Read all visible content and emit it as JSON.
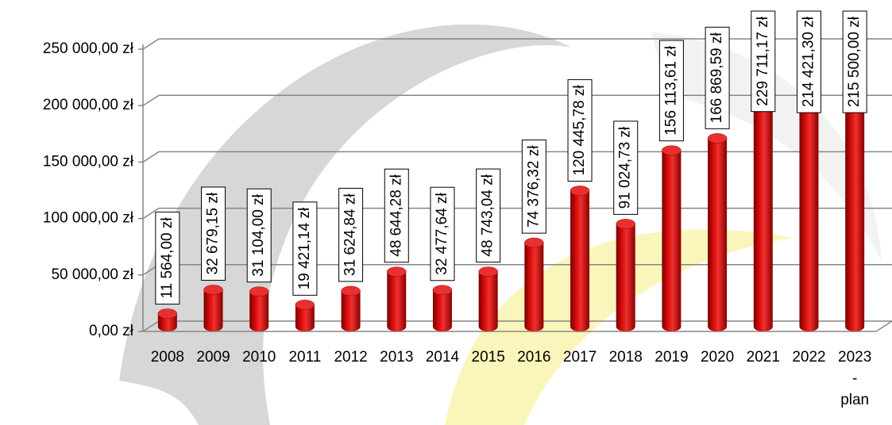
{
  "chart_data": {
    "type": "bar",
    "categories": [
      "2008",
      "2009",
      "2010",
      "2011",
      "2012",
      "2013",
      "2014",
      "2015",
      "2016",
      "2017",
      "2018",
      "2019",
      "2020",
      "2021",
      "2022",
      "2023 - plan"
    ],
    "values": [
      11564,
      32679.15,
      31104,
      19421.14,
      31624.84,
      48644.28,
      32477.64,
      48743.04,
      74376.32,
      120445.78,
      91024.73,
      156113.61,
      166869.59,
      229711.17,
      214421.3,
      215500
    ],
    "value_labels": [
      "11 564,00 zł",
      "32 679,15 zł",
      "31 104,00 zł",
      "19 421,14 zł",
      "31 624,84 zł",
      "48 644,28 zł",
      "32 477,64 zł",
      "48 743,04 zł",
      "74 376,32 zł",
      "120 445,78 zł",
      "91 024,73 zł",
      "156 113,61 zł",
      "166 869,59 zł",
      "229 711,17 zł",
      "214 421,30 zł",
      "215 500,00 zł"
    ],
    "color": "#cc0000",
    "ylim": [
      0,
      250000
    ],
    "yticks": [
      {
        "value": 0,
        "label": "0,00 zł"
      },
      {
        "value": 50000,
        "label": "50 000,00 zł"
      },
      {
        "value": 100000,
        "label": "100 000,00 zł"
      },
      {
        "value": 150000,
        "label": "150 000,00 zł"
      },
      {
        "value": 200000,
        "label": "200 000,00 zł"
      },
      {
        "value": 250000,
        "label": "250 000,00 zł"
      }
    ],
    "grid": true
  }
}
